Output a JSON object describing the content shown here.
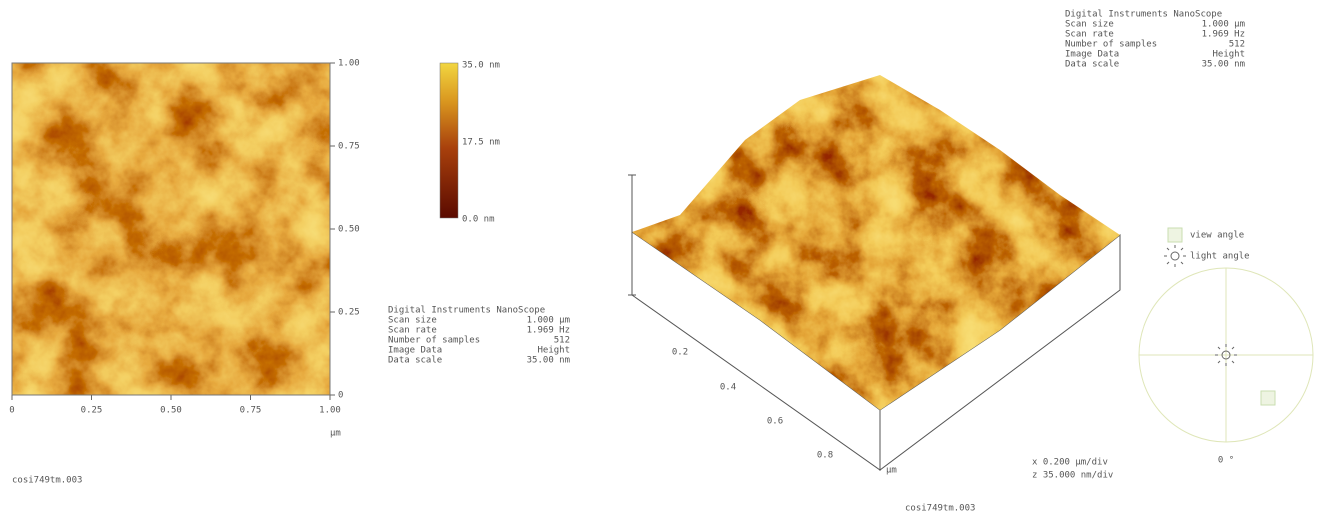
{
  "left_panel": {
    "y_ticks": [
      "1.00",
      "0.75",
      "0.50",
      "0.25",
      "0"
    ],
    "x_ticks": [
      "0",
      "0.25",
      "0.50",
      "0.75",
      "1.00"
    ],
    "unit": "µm",
    "color_scale": [
      "35.0 nm",
      "17.5 nm",
      "0.0 nm"
    ],
    "info": {
      "title": "Digital Instruments NanoScope",
      "rows": [
        [
          "Scan size",
          "1.000 µm"
        ],
        [
          "Scan rate",
          "1.969 Hz"
        ],
        [
          "Number of samples",
          "512"
        ],
        [
          "Image Data",
          "Height"
        ],
        [
          "Data scale",
          "35.00 nm"
        ]
      ]
    },
    "filename": "cosi749tm.003"
  },
  "right_panel": {
    "info": {
      "title": "Digital Instruments NanoScope",
      "rows": [
        [
          "Scan size",
          "1.000 µm"
        ],
        [
          "Scan rate",
          "1.969 Hz"
        ],
        [
          "Number of samples",
          "512"
        ],
        [
          "Image Data",
          "Height"
        ],
        [
          "Data scale",
          "35.00 nm"
        ]
      ]
    },
    "axis_ticks": [
      "0.2",
      "0.4",
      "0.6",
      "0.8"
    ],
    "unit": "µm",
    "legend": [
      "view angle",
      "light angle"
    ],
    "angle": "0 °",
    "scale": [
      "x 0.200 µm/div",
      "z 35.000 nm/div"
    ],
    "filename": "cosi749tm.003"
  }
}
